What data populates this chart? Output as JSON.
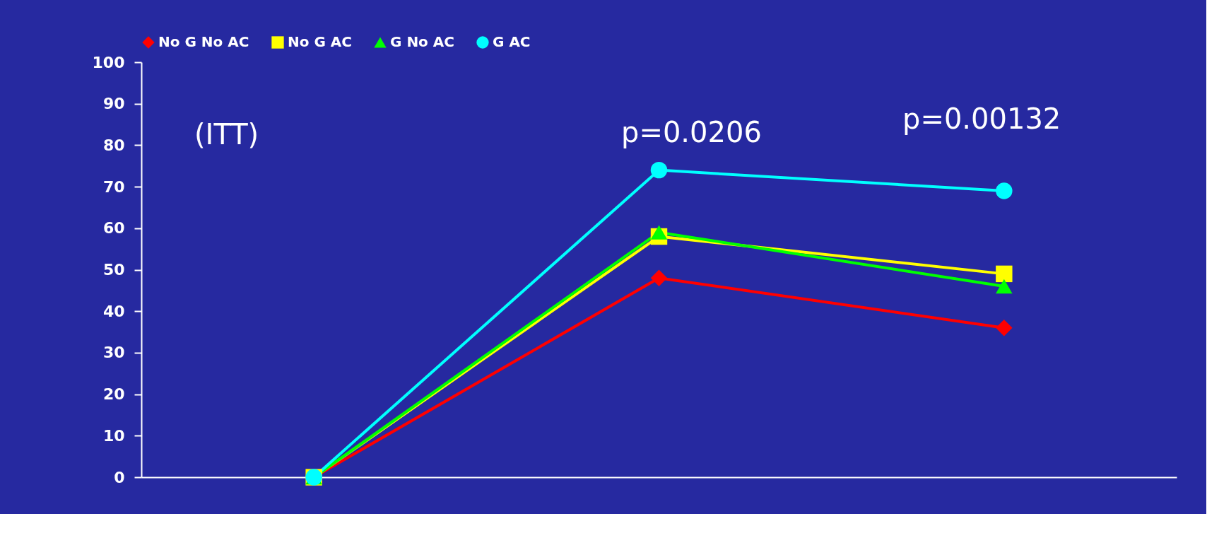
{
  "chart_data": {
    "type": "line",
    "categories": [
      null,
      null,
      null
    ],
    "series": [
      {
        "name": "No G No AC",
        "color": "#ff0000",
        "marker": "diamond",
        "values": [
          0,
          48,
          36
        ]
      },
      {
        "name": "No G AC",
        "color": "#ffff00",
        "marker": "square",
        "values": [
          0,
          58,
          49
        ]
      },
      {
        "name": "G No AC",
        "color": "#00ff00",
        "marker": "triangle",
        "values": [
          0,
          59,
          46
        ]
      },
      {
        "name": "G AC",
        "color": "#00ffff",
        "marker": "circle",
        "values": [
          0,
          74,
          69
        ]
      }
    ],
    "ylim": [
      0,
      100
    ],
    "yticks": [
      0,
      10,
      20,
      30,
      40,
      50,
      60,
      70,
      80,
      90,
      100
    ],
    "tick_labels": "y",
    "grid": false,
    "legend": "top",
    "line_style": "solid",
    "annotations": [
      "(ITT)",
      "p=0.0206",
      "p=0.00132"
    ]
  }
}
